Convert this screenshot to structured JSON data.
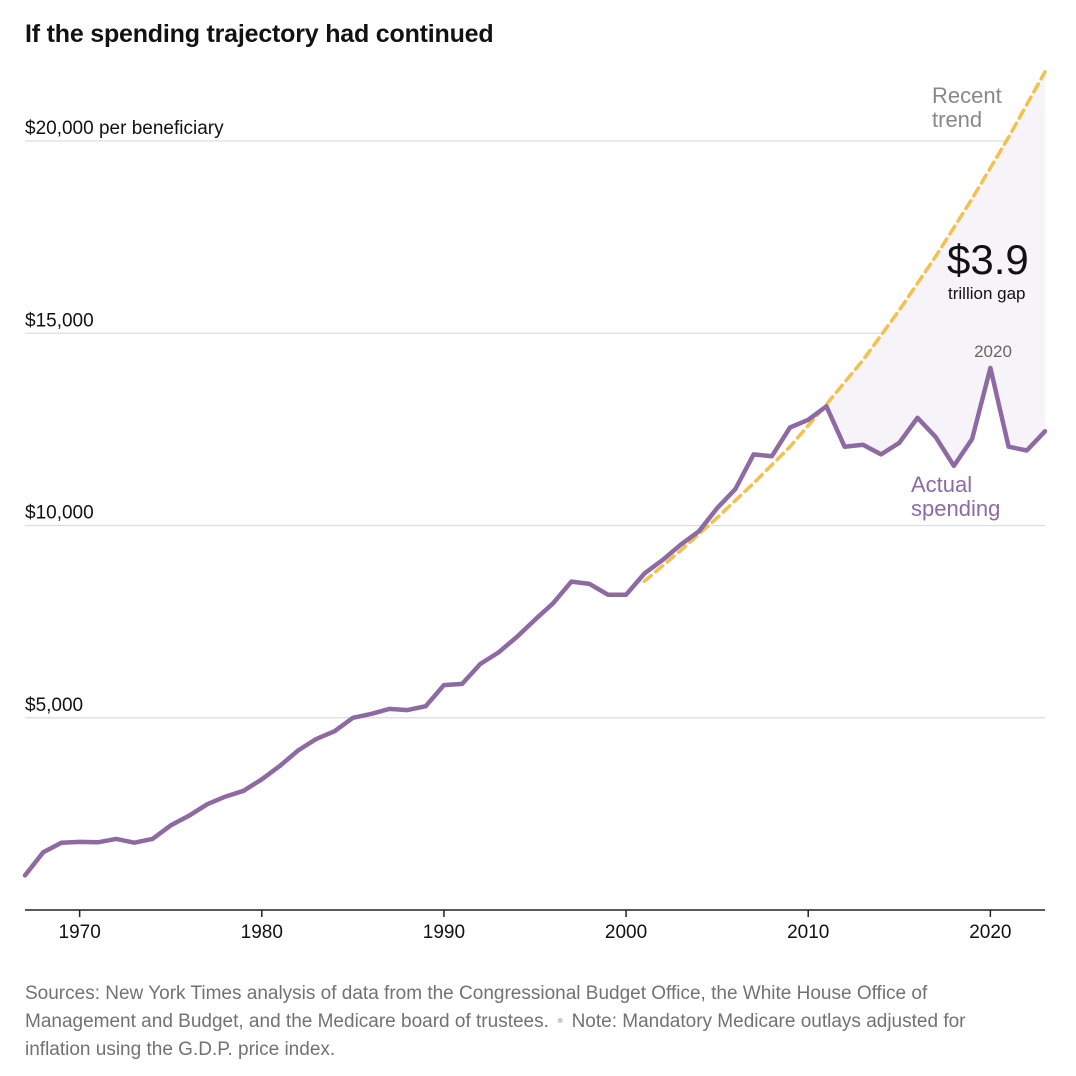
{
  "title": "If the spending trajectory had continued",
  "footer": {
    "sources": "Sources: New York Times analysis of data from the Congressional Budget Office, the White House Office of Management and Budget, and the Medicare board of trustees.",
    "note": "Note: Mandatory Medicare outlays adjusted for inflation using the G.D.P. price index."
  },
  "colors": {
    "actual": "#8e6aa3",
    "trend": "#f2c14e",
    "gap_fill": "#f7f4f9",
    "grid": "#dddddd",
    "axis": "#222222",
    "label_gray": "#888888"
  },
  "chart_data": {
    "type": "line",
    "title": "If the spending trajectory had continued",
    "xlabel": "",
    "ylabel": "",
    "xlim": [
      1967,
      2023
    ],
    "ylim": [
      0,
      20000
    ],
    "x_ticks": [
      1970,
      1980,
      1990,
      2000,
      2010,
      2020
    ],
    "x_tick_labels": [
      "1970",
      "1980",
      "1990",
      "2000",
      "2010",
      "2020"
    ],
    "y_ticks": [
      5000,
      10000,
      15000,
      20000
    ],
    "y_tick_labels": [
      "$5,000",
      "$10,000",
      "$15,000",
      "$20,000 per beneficiary"
    ],
    "grid": "horizontal",
    "series": [
      {
        "name": "Actual spending",
        "x": [
          1967,
          1968,
          1969,
          1970,
          1971,
          1972,
          1973,
          1974,
          1975,
          1976,
          1977,
          1978,
          1979,
          1980,
          1981,
          1982,
          1983,
          1984,
          1985,
          1986,
          1987,
          1988,
          1989,
          1990,
          1991,
          1992,
          1993,
          1994,
          1995,
          1996,
          1997,
          1998,
          1999,
          2000,
          2001,
          2002,
          2003,
          2004,
          2005,
          2006,
          2007,
          2008,
          2009,
          2010,
          2011,
          2012,
          2013,
          2014,
          2015,
          2016,
          2017,
          2018,
          2019,
          2020,
          2021,
          2022,
          2023
        ],
        "values": [
          900,
          1500,
          1750,
          1770,
          1760,
          1850,
          1750,
          1850,
          2200,
          2450,
          2750,
          2950,
          3100,
          3400,
          3750,
          4150,
          4450,
          4650,
          5000,
          5100,
          5230,
          5200,
          5300,
          5850,
          5880,
          6400,
          6700,
          7100,
          7550,
          7980,
          8540,
          8480,
          8200,
          8200,
          8750,
          9100,
          9500,
          9850,
          10450,
          10950,
          11850,
          11800,
          12550,
          12750,
          13100,
          12050,
          12100,
          11850,
          12150,
          12800,
          12300,
          11550,
          12250,
          14100,
          12050,
          11950,
          12450
        ]
      },
      {
        "name": "Recent trend",
        "x": [
          2001,
          2003,
          2005,
          2007,
          2009,
          2011,
          2013,
          2015,
          2017,
          2019,
          2021,
          2023
        ],
        "values": [
          8550,
          9350,
          10200,
          11100,
          12050,
          13150,
          14300,
          15600,
          17000,
          18500,
          20100,
          21800
        ]
      }
    ],
    "annotations": [
      {
        "text": "Recent trend",
        "x": 2020.6,
        "y": 20500
      },
      {
        "text": "$3.9",
        "x": 2020.6,
        "y": 16350
      },
      {
        "text": "trillion gap",
        "x": 2020.6,
        "y": 15500
      },
      {
        "text": "2020",
        "x": 2020.2,
        "y": 14600
      },
      {
        "text": "Actual spending",
        "x": 2018.7,
        "y": 10500
      }
    ]
  },
  "labels": {
    "recent_trend": [
      "Recent",
      "trend"
    ],
    "gap_value": "$3.9",
    "gap_unit": "trillion gap",
    "year_2020": "2020",
    "actual_spending": [
      "Actual",
      "spending"
    ]
  }
}
